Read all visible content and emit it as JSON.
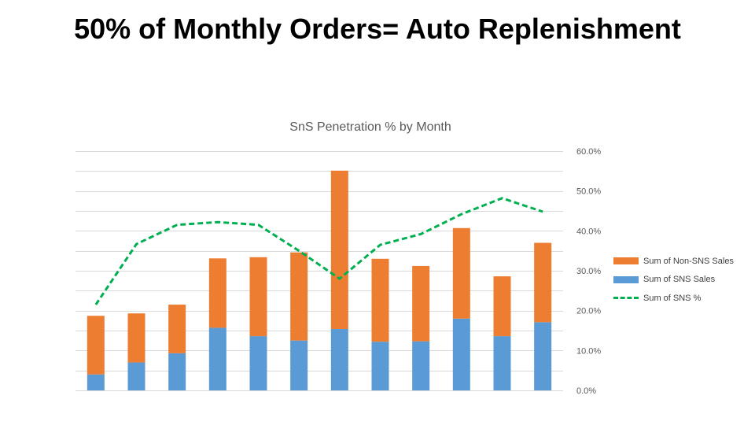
{
  "slide": {
    "title": "50% of Monthly Orders= Auto Replenishment"
  },
  "chart_data": {
    "type": "bar",
    "stacked": true,
    "title": "SnS Penetration % by Month",
    "categories": [
      "",
      "",
      "",
      "",
      "",
      "",
      "",
      "",
      "",
      "",
      "",
      ""
    ],
    "series": [
      {
        "name": "Sum of SNS Sales",
        "color": "#5b9bd5",
        "values": [
          4.0,
          7.0,
          9.3,
          15.7,
          13.6,
          12.5,
          15.4,
          12.2,
          12.3,
          18.0,
          13.6,
          17.1
        ]
      },
      {
        "name": "Sum of Non-SNS Sales",
        "color": "#ed7d31",
        "values": [
          14.7,
          12.3,
          12.2,
          17.4,
          19.8,
          22.1,
          39.7,
          20.8,
          18.9,
          22.7,
          15.0,
          19.9
        ]
      },
      {
        "name": "Sum of SNS %",
        "color": "#00b050",
        "axis": "right",
        "style": "dashed-line",
        "values": [
          21.5,
          36.7,
          41.5,
          42.2,
          41.5,
          35.0,
          28.0,
          36.5,
          39.2,
          44.2,
          48.2,
          44.8
        ]
      }
    ],
    "left_axis": {
      "ylim": [
        0,
        60
      ],
      "visible": false
    },
    "right_axis": {
      "ylim": [
        0,
        60
      ],
      "ticks": [
        "0.0%",
        "10.0%",
        "20.0%",
        "30.0%",
        "40.0%",
        "50.0%",
        "60.0%"
      ]
    },
    "legend": {
      "position": "right",
      "items": [
        "Sum of Non-SNS Sales",
        "Sum of SNS Sales",
        "Sum of SNS %"
      ]
    },
    "grid": true
  }
}
